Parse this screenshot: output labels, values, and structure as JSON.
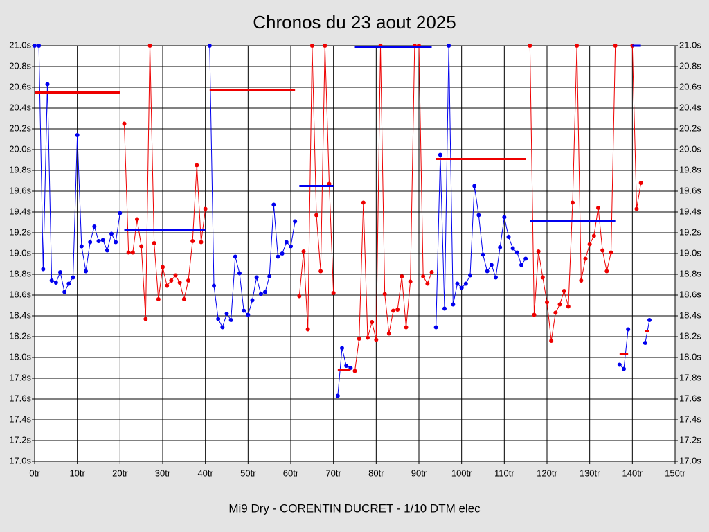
{
  "chart_data": {
    "type": "line",
    "title": "Chronos du 23 aout 2025",
    "x_label": "Mi9 Dry - CORENTIN DUCRET - 1/10 DTM elec",
    "grid": true,
    "xlim": [
      0,
      150
    ],
    "ylim": [
      17.0,
      21.0
    ],
    "xticks": [
      {
        "value": 0,
        "label": "0tr"
      },
      {
        "value": 10,
        "label": "10tr"
      },
      {
        "value": 20,
        "label": "20tr"
      },
      {
        "value": 30,
        "label": "30tr"
      },
      {
        "value": 40,
        "label": "40tr"
      },
      {
        "value": 50,
        "label": "50tr"
      },
      {
        "value": 60,
        "label": "60tr"
      },
      {
        "value": 70,
        "label": "70tr"
      },
      {
        "value": 80,
        "label": "80tr"
      },
      {
        "value": 90,
        "label": "90tr"
      },
      {
        "value": 100,
        "label": "100tr"
      },
      {
        "value": 110,
        "label": "110tr"
      },
      {
        "value": 120,
        "label": "120tr"
      },
      {
        "value": 130,
        "label": "130tr"
      },
      {
        "value": 140,
        "label": "140tr"
      },
      {
        "value": 150,
        "label": "150tr"
      }
    ],
    "yticks": [
      {
        "value": 17.0,
        "label": "17.0s"
      },
      {
        "value": 17.2,
        "label": "17.2s"
      },
      {
        "value": 17.4,
        "label": "17.4s"
      },
      {
        "value": 17.6,
        "label": "17.6s"
      },
      {
        "value": 17.8,
        "label": "17.8s"
      },
      {
        "value": 18.0,
        "label": "18.0s"
      },
      {
        "value": 18.2,
        "label": "18.2s"
      },
      {
        "value": 18.4,
        "label": "18.4s"
      },
      {
        "value": 18.6,
        "label": "18.6s"
      },
      {
        "value": 18.8,
        "label": "18.8s"
      },
      {
        "value": 19.0,
        "label": "19.0s"
      },
      {
        "value": 19.2,
        "label": "19.2s"
      },
      {
        "value": 19.4,
        "label": "19.4s"
      },
      {
        "value": 19.6,
        "label": "19.6s"
      },
      {
        "value": 19.8,
        "label": "19.8s"
      },
      {
        "value": 20.0,
        "label": "20.0s"
      },
      {
        "value": 20.2,
        "label": "20.2s"
      },
      {
        "value": 20.4,
        "label": "20.4s"
      },
      {
        "value": 20.6,
        "label": "20.6s"
      },
      {
        "value": 20.8,
        "label": "20.8s"
      },
      {
        "value": 21.0,
        "label": "21.0s"
      }
    ],
    "series": [
      {
        "color": "#0000ee",
        "x": [
          0,
          1,
          2,
          3,
          4,
          5,
          6,
          7,
          8,
          9,
          10,
          11,
          12,
          13,
          14,
          15,
          16,
          17,
          18,
          19,
          20
        ],
        "values": [
          21.0,
          21.0,
          18.85,
          20.63,
          18.74,
          18.72,
          18.82,
          18.63,
          18.71,
          18.77,
          20.14,
          19.07,
          18.83,
          19.11,
          19.26,
          19.12,
          19.13,
          19.03,
          19.19,
          19.11,
          19.39
        ]
      },
      {
        "color": "#ee0000",
        "x": [
          21,
          22,
          23,
          24,
          25,
          26,
          27,
          28,
          29,
          30,
          31,
          32,
          33,
          34,
          35,
          36,
          37,
          38,
          39,
          40
        ],
        "values": [
          20.25,
          19.01,
          19.01,
          19.33,
          19.07,
          18.37,
          21.0,
          19.1,
          18.56,
          18.87,
          18.69,
          18.74,
          18.79,
          18.72,
          18.56,
          18.74,
          19.12,
          19.85,
          19.11,
          19.43
        ]
      },
      {
        "color": "#0000ee",
        "x": [
          41,
          42,
          43,
          44,
          45,
          46,
          47,
          48,
          49,
          50,
          51,
          52,
          53,
          54,
          55,
          56,
          57,
          58,
          59,
          60,
          61
        ],
        "values": [
          21.0,
          18.69,
          18.37,
          18.29,
          18.42,
          18.36,
          18.97,
          18.81,
          18.45,
          18.41,
          18.55,
          18.77,
          18.61,
          18.63,
          18.78,
          19.47,
          18.97,
          19.0,
          19.11,
          19.07,
          19.31
        ]
      },
      {
        "color": "#ee0000",
        "x": [
          62,
          63,
          64,
          65,
          66,
          67,
          68,
          69,
          70
        ],
        "values": [
          18.59,
          19.02,
          18.27,
          21.0,
          19.37,
          18.83,
          21.0,
          19.67,
          18.62
        ]
      },
      {
        "color": "#0000ee",
        "x": [
          71,
          72,
          73,
          74
        ],
        "values": [
          17.63,
          18.09,
          17.92,
          17.9
        ]
      },
      {
        "color": "#ee0000",
        "x": [
          75,
          76,
          77,
          78,
          79,
          80,
          81,
          82,
          83,
          84,
          85,
          86,
          87,
          88,
          89,
          90,
          91,
          92,
          93
        ],
        "values": [
          17.87,
          18.18,
          19.49,
          18.19,
          18.34,
          18.17,
          21.0,
          18.61,
          18.23,
          18.45,
          18.46,
          18.78,
          18.29,
          18.73,
          21.0,
          21.0,
          18.78,
          18.71,
          18.82
        ]
      },
      {
        "color": "#0000ee",
        "x": [
          94,
          95,
          96,
          97,
          98,
          99,
          100,
          101,
          102,
          103,
          104,
          105,
          106,
          107,
          108,
          109,
          110,
          111,
          112,
          113,
          114,
          115
        ],
        "values": [
          18.29,
          19.95,
          18.47,
          21.0,
          18.51,
          18.71,
          18.67,
          18.71,
          18.79,
          19.65,
          19.37,
          18.99,
          18.83,
          18.89,
          18.77,
          19.06,
          19.35,
          19.16,
          19.05,
          19.01,
          18.89,
          18.95
        ]
      },
      {
        "color": "#ee0000",
        "x": [
          116,
          117,
          118,
          119,
          120,
          121,
          122,
          123,
          124,
          125,
          126,
          127,
          128,
          129,
          130,
          131,
          132,
          133,
          134,
          135,
          136
        ],
        "values": [
          21.0,
          18.41,
          19.02,
          18.77,
          18.53,
          18.16,
          18.43,
          18.51,
          18.64,
          18.49,
          19.49,
          21.0,
          18.74,
          18.95,
          19.09,
          19.17,
          19.44,
          19.03,
          18.83,
          19.01,
          21.0
        ]
      },
      {
        "color": "#0000ee",
        "x": [
          137,
          138,
          139
        ],
        "values": [
          17.93,
          17.89,
          18.27
        ]
      },
      {
        "color": "#ee0000",
        "x": [
          140,
          141,
          142
        ],
        "values": [
          21.0,
          19.43,
          19.68
        ]
      },
      {
        "color": "#0000ee",
        "x": [
          143,
          144
        ],
        "values": [
          18.14,
          18.36
        ]
      }
    ],
    "averages": [
      {
        "color": "#ee0000",
        "x": [
          0,
          20
        ],
        "value": 20.55
      },
      {
        "color": "#0000ee",
        "x": [
          21,
          40
        ],
        "value": 19.23
      },
      {
        "color": "#ee0000",
        "x": [
          41,
          61
        ],
        "value": 20.57
      },
      {
        "color": "#0000ee",
        "x": [
          62,
          70
        ],
        "value": 19.65
      },
      {
        "color": "#ee0000",
        "x": [
          71,
          74
        ],
        "value": 17.88
      },
      {
        "color": "#0000ee",
        "x": [
          75,
          93
        ],
        "value": 20.99
      },
      {
        "color": "#ee0000",
        "x": [
          94,
          115
        ],
        "value": 19.91
      },
      {
        "color": "#0000ee",
        "x": [
          116,
          136
        ],
        "value": 19.31
      },
      {
        "color": "#ee0000",
        "x": [
          137,
          139
        ],
        "value": 18.03
      },
      {
        "color": "#0000ee",
        "x": [
          140,
          142
        ],
        "value": 21.0
      },
      {
        "color": "#ee0000",
        "x": [
          143,
          144
        ],
        "value": 18.25
      }
    ]
  }
}
